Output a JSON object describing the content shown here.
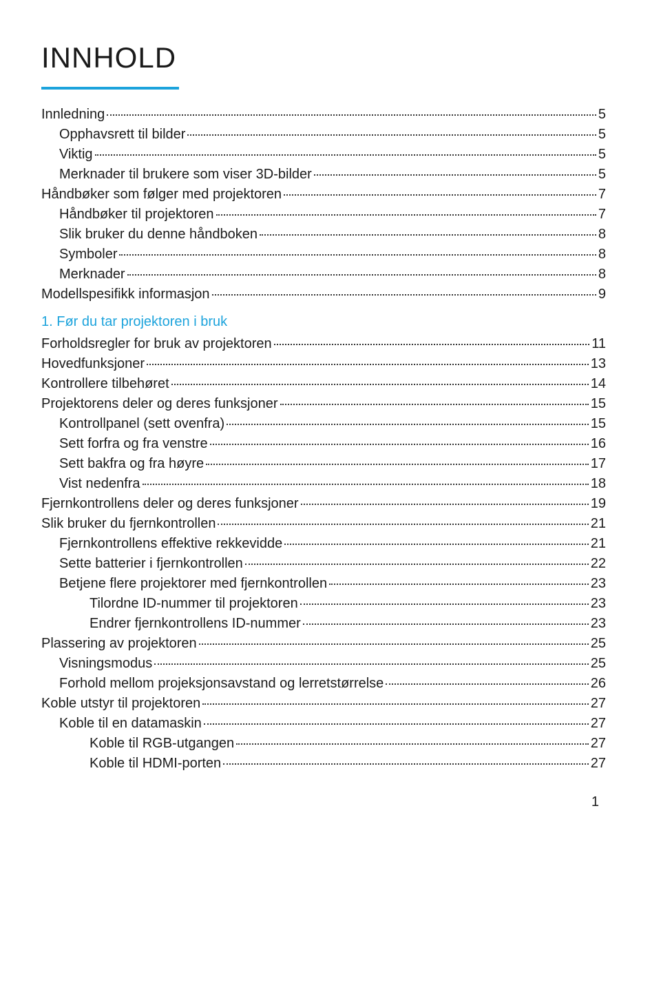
{
  "colors": {
    "accent": "#1ca3dc",
    "text": "#1a1a1a"
  },
  "title": "INNHOLD",
  "section_heading": "1.  Før du tar projektoren i bruk",
  "footer_page": "1",
  "entries": [
    {
      "label": "Innledning",
      "page": "5",
      "indent": 0
    },
    {
      "label": "Opphavsrett til bilder",
      "page": "5",
      "indent": 1
    },
    {
      "label": "Viktig",
      "page": "5",
      "indent": 1
    },
    {
      "label": "Merknader til brukere som viser 3D-bilder",
      "page": "5",
      "indent": 1
    },
    {
      "label": "Håndbøker som følger med projektoren",
      "page": "7",
      "indent": 0
    },
    {
      "label": "Håndbøker til projektoren",
      "page": "7",
      "indent": 1
    },
    {
      "label": "Slik bruker du denne håndboken",
      "page": "8",
      "indent": 1
    },
    {
      "label": "Symboler",
      "page": "8",
      "indent": 1
    },
    {
      "label": "Merknader",
      "page": "8",
      "indent": 1
    },
    {
      "label": "Modellspesifikk informasjon",
      "page": "9",
      "indent": 0
    },
    {
      "heading": true
    },
    {
      "label": "Forholdsregler for bruk av projektoren",
      "page": "11",
      "indent": 0
    },
    {
      "label": "Hovedfunksjoner",
      "page": "13",
      "indent": 0
    },
    {
      "label": "Kontrollere tilbehøret",
      "page": "14",
      "indent": 0
    },
    {
      "label": "Projektorens deler og deres funksjoner",
      "page": "15",
      "indent": 0
    },
    {
      "label": "Kontrollpanel (sett ovenfra)",
      "page": "15",
      "indent": 1
    },
    {
      "label": "Sett forfra og fra venstre",
      "page": "16",
      "indent": 1
    },
    {
      "label": "Sett bakfra og fra høyre",
      "page": "17",
      "indent": 1
    },
    {
      "label": "Vist nedenfra",
      "page": "18",
      "indent": 1
    },
    {
      "label": "Fjernkontrollens deler og deres funksjoner",
      "page": "19",
      "indent": 0
    },
    {
      "label": "Slik bruker du fjernkontrollen",
      "page": "21",
      "indent": 0
    },
    {
      "label": "Fjernkontrollens effektive rekkevidde",
      "page": "21",
      "indent": 1
    },
    {
      "label": "Sette batterier i fjernkontrollen",
      "page": "22",
      "indent": 1
    },
    {
      "label": "Betjene flere projektorer med fjernkontrollen",
      "page": "23",
      "indent": 1
    },
    {
      "label": "Tilordne ID-nummer til projektoren",
      "page": "23",
      "indent": 2
    },
    {
      "label": "Endrer fjernkontrollens ID-nummer",
      "page": "23",
      "indent": 2
    },
    {
      "label": "Plassering av projektoren",
      "page": "25",
      "indent": 0
    },
    {
      "label": "Visningsmodus",
      "page": "25",
      "indent": 1
    },
    {
      "label": "Forhold mellom projeksjonsavstand og lerretstørrelse",
      "page": "26",
      "indent": 1
    },
    {
      "label": "Koble utstyr til projektoren",
      "page": "27",
      "indent": 0
    },
    {
      "label": "Koble til en datamaskin",
      "page": "27",
      "indent": 1
    },
    {
      "label": "Koble til RGB-utgangen",
      "page": "27",
      "indent": 2
    },
    {
      "label": "Koble til HDMI-porten",
      "page": "27",
      "indent": 2
    }
  ]
}
